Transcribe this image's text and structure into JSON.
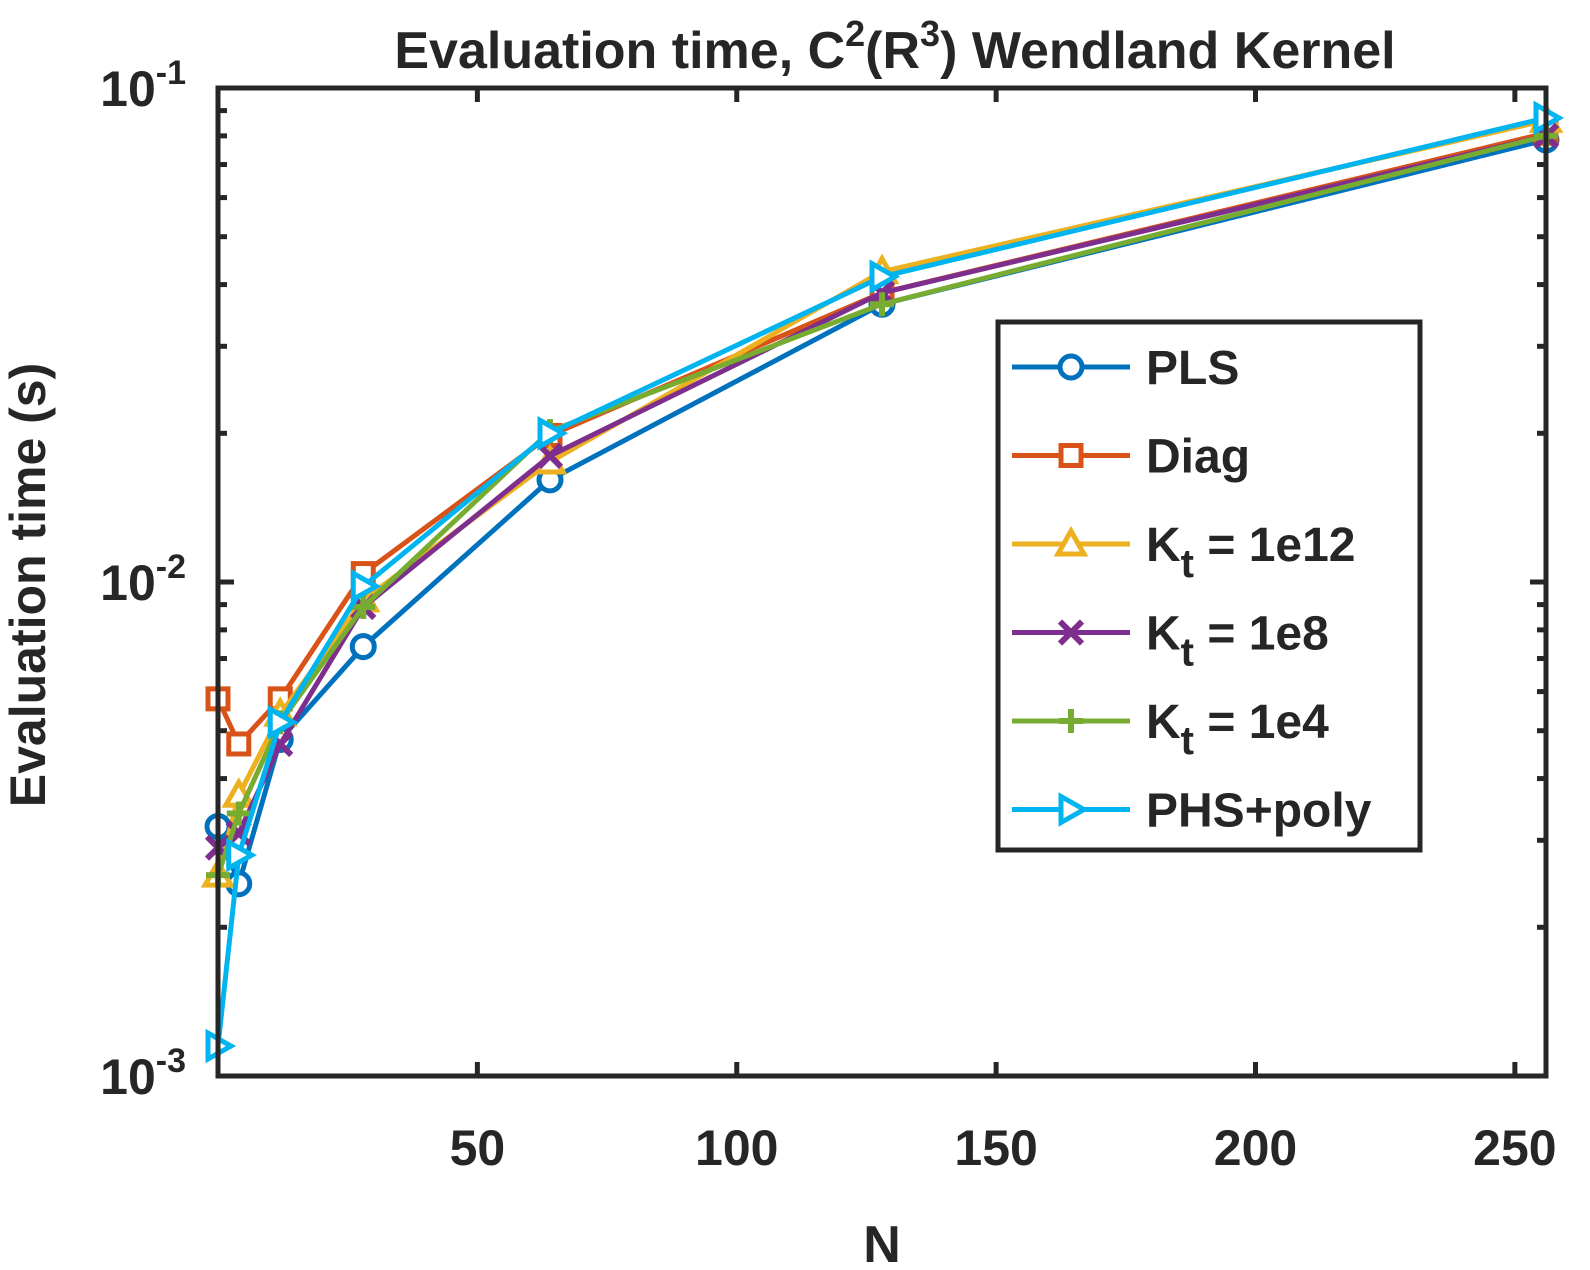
{
  "chart_data": {
    "type": "line",
    "title": {
      "pre": "Evaluation time, C",
      "sup1": "2",
      "mid": "(R",
      "sup2": "3",
      "post": ") Wendland Kernel"
    },
    "xlabel": "N",
    "ylabel": "Evaluation time (s)",
    "xscale": "linear",
    "yscale": "log",
    "xlim": [
      0,
      256
    ],
    "ylim": [
      0.001,
      0.1
    ],
    "xticks": [
      50,
      100,
      150,
      200,
      250
    ],
    "xtick_labels": [
      "50",
      "100",
      "150",
      "200",
      "250"
    ],
    "yticks": [
      {
        "value": 0.001,
        "base": "10",
        "exp": "-3"
      },
      {
        "value": 0.01,
        "base": "10",
        "exp": "-2"
      },
      {
        "value": 0.1,
        "base": "10",
        "exp": "-1"
      }
    ],
    "legend_position": "right",
    "x": [
      0,
      4,
      12,
      28,
      64,
      128,
      256
    ],
    "series": [
      {
        "name": "PLS",
        "sub": "",
        "suffix": "",
        "color": "#0072BD",
        "marker": "circle",
        "values": [
          0.0032,
          0.00245,
          0.0048,
          0.0074,
          0.0161,
          0.0365,
          0.0785
        ]
      },
      {
        "name": "Diag",
        "sub": "",
        "suffix": "",
        "color": "#D95319",
        "marker": "square",
        "values": [
          0.0058,
          0.0047,
          0.0058,
          0.0104,
          0.0198,
          0.0385,
          0.081
        ]
      },
      {
        "name": "K",
        "sub": "t",
        "suffix": " = 1e12",
        "color": "#EDB120",
        "marker": "triangle-up",
        "values": [
          0.00255,
          0.0037,
          0.0054,
          0.0092,
          0.0175,
          0.0425,
          0.086
        ]
      },
      {
        "name": "K",
        "sub": "t",
        "suffix": " = 1e8",
        "color": "#7E2F8E",
        "marker": "x",
        "values": [
          0.0029,
          0.0031,
          0.0047,
          0.0089,
          0.018,
          0.0385,
          0.08
        ]
      },
      {
        "name": "K",
        "sub": "t",
        "suffix": " = 1e4",
        "color": "#77AC30",
        "marker": "plus",
        "values": [
          0.00255,
          0.0034,
          0.0052,
          0.0089,
          0.0202,
          0.0365,
          0.08
        ]
      },
      {
        "name": "PHS+poly",
        "sub": "",
        "suffix": "",
        "color": "#00B4F0",
        "marker": "triangle-right",
        "values": [
          0.00115,
          0.0028,
          0.0052,
          0.0098,
          0.02,
          0.0415,
          0.087
        ]
      }
    ]
  }
}
